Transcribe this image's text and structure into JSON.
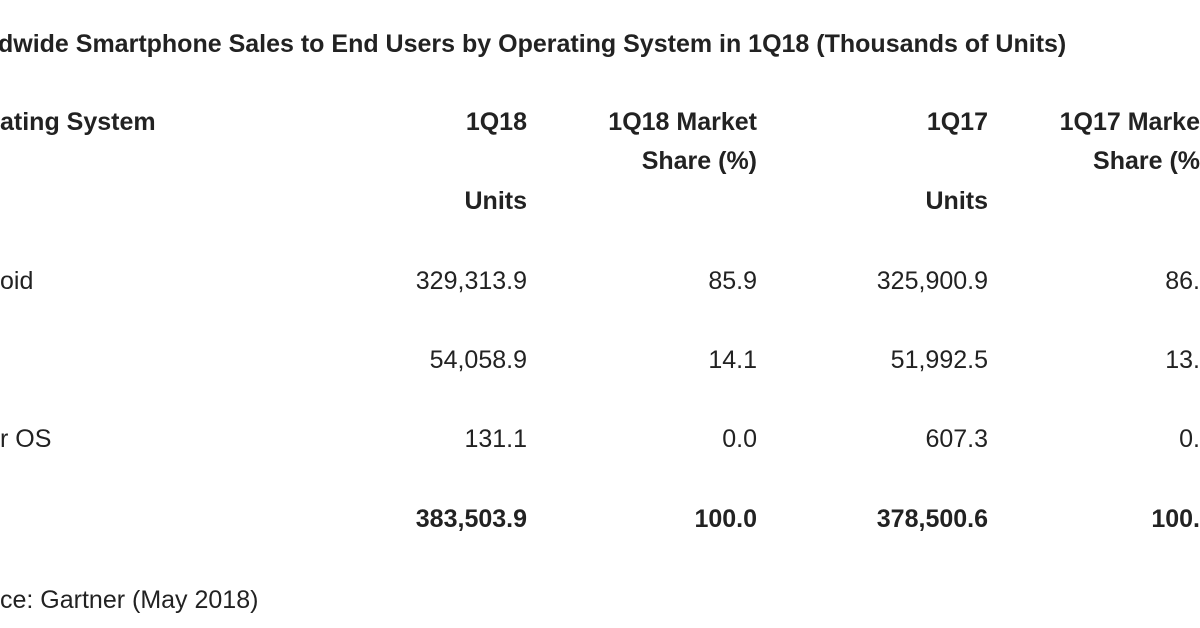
{
  "title": "dwide Smartphone Sales to End Users by Operating System in 1Q18 (Thousands of Units)",
  "table": {
    "header": {
      "label": "ating System",
      "columns": [
        [
          "1Q18",
          "Units"
        ],
        [
          "1Q18 Market",
          "Share (%)"
        ],
        [
          "1Q17",
          "Units"
        ],
        [
          "1Q17 Marke",
          "Share (%"
        ]
      ]
    },
    "rows": [
      {
        "label": "oid",
        "cells": [
          "329,313.9",
          "85.9",
          "325,900.9",
          "86."
        ]
      },
      {
        "cells": [
          "54,058.9",
          "14.1",
          "51,992.5",
          "13."
        ]
      },
      {
        "label": "r OS",
        "cells": [
          "131.1",
          "0.0",
          "607.3",
          "0."
        ]
      },
      {
        "cells": [
          "383,503.9",
          "100.0",
          "378,500.6",
          "100."
        ],
        "bold": true
      }
    ]
  },
  "source": "ce: Gartner (May 2018)"
}
